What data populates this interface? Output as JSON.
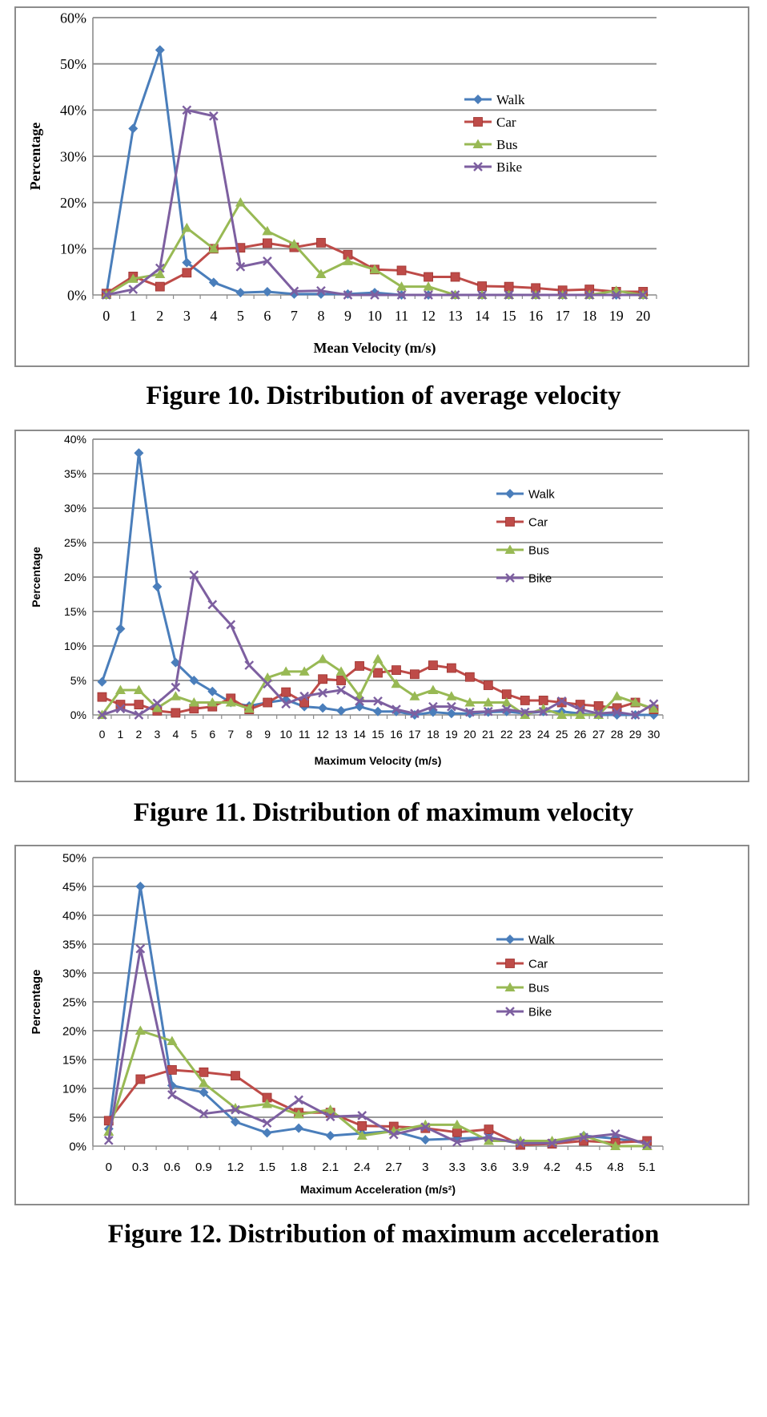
{
  "colors": {
    "Walk": "#4a7ebb",
    "Car": "#be4b48",
    "Bus": "#98b954",
    "Bike": "#7d5fa0",
    "grid": "#8c8c8c"
  },
  "chart_data": [
    {
      "type": "line",
      "caption": "Figure 10. Distribution of average velocity",
      "xlabel": "Mean Velocity (m/s)",
      "ylabel": "Percentage",
      "x": [
        "0",
        "1",
        "2",
        "3",
        "4",
        "5",
        "6",
        "7",
        "8",
        "9",
        "10",
        "11",
        "12",
        "13",
        "14",
        "15",
        "16",
        "17",
        "18",
        "19",
        "20"
      ],
      "ylim": [
        0,
        60
      ],
      "yticks": [
        "0%",
        "10%",
        "20%",
        "30%",
        "40%",
        "50%",
        "60%"
      ],
      "legend_position": "right",
      "grid": true,
      "series": [
        {
          "name": "Walk",
          "marker": "diamond",
          "values": [
            0,
            36,
            53,
            7,
            2.7,
            0.5,
            0.7,
            0.2,
            0.2,
            0.2,
            0.5,
            0,
            0,
            0,
            0,
            0,
            0,
            0,
            0,
            0,
            0
          ]
        },
        {
          "name": "Car",
          "marker": "square",
          "values": [
            0.3,
            4,
            1.8,
            4.8,
            10,
            10.2,
            11.2,
            10.3,
            11.3,
            8.7,
            5.5,
            5.3,
            3.9,
            3.9,
            1.9,
            1.8,
            1.5,
            1,
            1.2,
            0.7,
            0.7
          ]
        },
        {
          "name": "Bus",
          "marker": "triangle",
          "values": [
            0,
            3.5,
            4.5,
            14.5,
            10,
            20,
            13.8,
            11,
            4.5,
            7.3,
            5.5,
            1.8,
            1.8,
            0,
            0,
            0,
            0,
            0,
            0,
            0.9,
            0
          ]
        },
        {
          "name": "Bike",
          "marker": "x",
          "values": [
            0,
            1.2,
            5.8,
            40,
            38.7,
            6.1,
            7.3,
            0.8,
            0.9,
            0,
            0,
            0,
            0,
            0,
            0,
            0,
            0,
            0,
            0,
            0,
            0
          ]
        }
      ]
    },
    {
      "type": "line",
      "caption": "Figure 11. Distribution of maximum velocity",
      "xlabel": "Maximum Velocity (m/s)",
      "ylabel": "Percentage",
      "x": [
        "0",
        "1",
        "2",
        "3",
        "4",
        "5",
        "6",
        "7",
        "8",
        "9",
        "10",
        "11",
        "12",
        "13",
        "14",
        "15",
        "16",
        "17",
        "18",
        "19",
        "20",
        "21",
        "22",
        "23",
        "24",
        "25",
        "26",
        "27",
        "28",
        "29",
        "30"
      ],
      "ylim": [
        0,
        40
      ],
      "yticks": [
        "0%",
        "5%",
        "10%",
        "15%",
        "20%",
        "25%",
        "30%",
        "35%",
        "40%"
      ],
      "legend_position": "right",
      "grid": true,
      "series": [
        {
          "name": "Walk",
          "marker": "diamond",
          "values": [
            4.8,
            12.5,
            38,
            18.6,
            7.6,
            5,
            3.4,
            1.8,
            1.3,
            1.8,
            2.2,
            1.2,
            1,
            0.6,
            1.2,
            0.5,
            0.5,
            0,
            0.4,
            0.2,
            0.2,
            0.4,
            0.5,
            0.2,
            0.5,
            0.5,
            0.2,
            0,
            0,
            0,
            0
          ]
        },
        {
          "name": "Car",
          "marker": "square",
          "values": [
            2.6,
            1.5,
            1.5,
            0.6,
            0.3,
            0.9,
            1.2,
            2.4,
            0.8,
            1.8,
            3.3,
            1.8,
            5.2,
            5,
            7.1,
            6.1,
            6.5,
            5.9,
            7.2,
            6.8,
            5.5,
            4.3,
            3,
            2.1,
            2.1,
            1.8,
            1.5,
            1.3,
            1,
            1.8,
            0.8
          ]
        },
        {
          "name": "Bus",
          "marker": "triangle",
          "values": [
            0,
            3.6,
            3.6,
            1,
            2.7,
            1.8,
            1.8,
            1.8,
            0.9,
            5.4,
            6.3,
            6.3,
            8.1,
            6.3,
            2.7,
            8.1,
            4.5,
            2.7,
            3.6,
            2.7,
            1.8,
            1.8,
            1.8,
            0,
            0.9,
            0,
            0,
            0,
            2.7,
            1.8,
            0.9
          ]
        },
        {
          "name": "Bike",
          "marker": "x",
          "values": [
            0,
            0.9,
            0,
            1.7,
            4,
            20.3,
            16,
            13.1,
            7.2,
            4.5,
            1.6,
            2.7,
            3.2,
            3.6,
            2,
            2,
            0.8,
            0.2,
            1.2,
            1.2,
            0.4,
            0.5,
            0.8,
            0.4,
            0.5,
            2,
            0.8,
            0.2,
            0.4,
            0,
            1.6
          ]
        }
      ]
    },
    {
      "type": "line",
      "caption": "Figure 12. Distribution of maximum acceleration",
      "xlabel": "Maximum Acceleration (m/s²)",
      "ylabel": "Percentage",
      "x": [
        "0",
        "0.3",
        "0.6",
        "0.9",
        "1.2",
        "1.5",
        "1.8",
        "2.1",
        "2.4",
        "2.7",
        "3",
        "3.3",
        "3.6",
        "3.9",
        "4.2",
        "4.5",
        "4.8",
        "5.1"
      ],
      "ylim": [
        0,
        50
      ],
      "yticks": [
        "0%",
        "5%",
        "10%",
        "15%",
        "20%",
        "25%",
        "30%",
        "35%",
        "40%",
        "45%",
        "50%"
      ],
      "legend_position": "right",
      "grid": true,
      "series": [
        {
          "name": "Walk",
          "marker": "diamond",
          "values": [
            3,
            45,
            10.5,
            9.3,
            4.2,
            2.3,
            3.1,
            1.8,
            2.2,
            2.6,
            1.1,
            1.3,
            1.5,
            0.4,
            0.6,
            1.8,
            1.3,
            0.5
          ]
        },
        {
          "name": "Car",
          "marker": "square",
          "values": [
            4.4,
            11.6,
            13.2,
            12.8,
            12.2,
            8.4,
            5.8,
            5.8,
            3.5,
            3.4,
            3.1,
            2.4,
            2.9,
            0.2,
            0.4,
            0.9,
            0.6,
            0.9
          ]
        },
        {
          "name": "Bus",
          "marker": "triangle",
          "values": [
            2.5,
            20,
            18.2,
            10.9,
            6.6,
            7.3,
            5.5,
            6.3,
            1.8,
            2.6,
            3.7,
            3.7,
            0.9,
            0.9,
            0.9,
            1.8,
            0,
            0
          ]
        },
        {
          "name": "Bike",
          "marker": "x",
          "values": [
            1,
            34.2,
            8.9,
            5.6,
            6.3,
            4,
            8,
            5.1,
            5.3,
            2,
            3.3,
            0.7,
            1.5,
            0.5,
            0.5,
            1.5,
            2.1,
            0.3
          ]
        }
      ]
    }
  ]
}
